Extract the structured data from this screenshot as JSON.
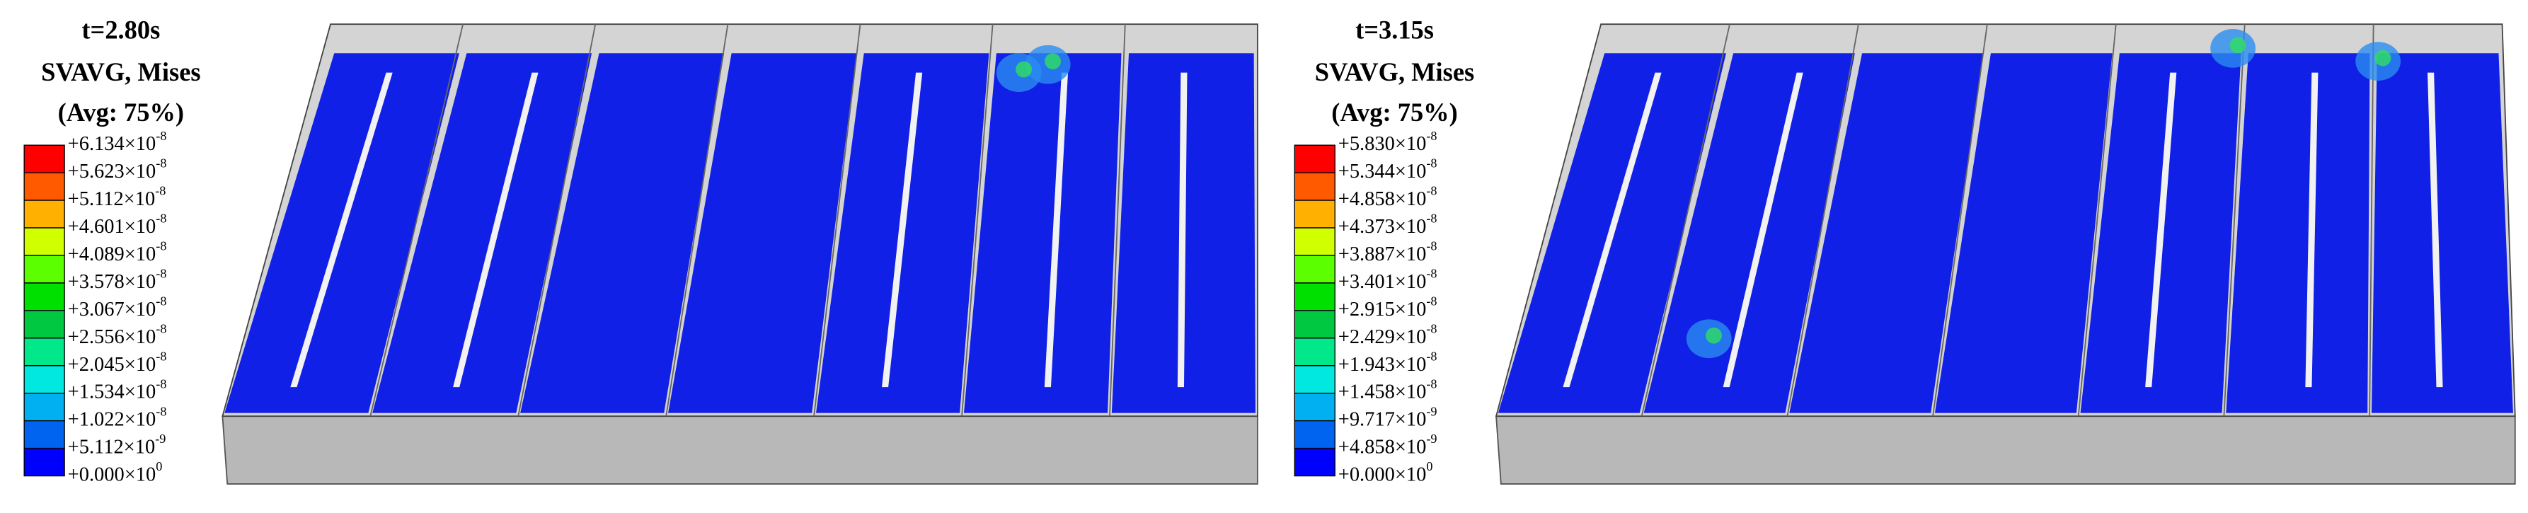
{
  "panels": [
    {
      "time": "t=2.80s",
      "variable": "SVAVG, Mises",
      "averaging": "(Avg: 75%)",
      "legend": [
        {
          "mantissa": "+6.134×10",
          "exponent": "-8"
        },
        {
          "mantissa": "+5.623×10",
          "exponent": "-8"
        },
        {
          "mantissa": "+5.112×10",
          "exponent": "-8"
        },
        {
          "mantissa": "+4.601×10",
          "exponent": "-8"
        },
        {
          "mantissa": "+4.089×10",
          "exponent": "-8"
        },
        {
          "mantissa": "+3.578×10",
          "exponent": "-8"
        },
        {
          "mantissa": "+3.067×10",
          "exponent": "-8"
        },
        {
          "mantissa": "+2.556×10",
          "exponent": "-8"
        },
        {
          "mantissa": "+2.045×10",
          "exponent": "-8"
        },
        {
          "mantissa": "+1.534×10",
          "exponent": "-8"
        },
        {
          "mantissa": "+1.022×10",
          "exponent": "-8"
        },
        {
          "mantissa": "+5.112×10",
          "exponent": "-9"
        },
        {
          "mantissa": "+0.000×10",
          "exponent": "0"
        }
      ]
    },
    {
      "time": "t=3.15s",
      "variable": "SVAVG, Mises",
      "averaging": "(Avg: 75%)",
      "legend": [
        {
          "mantissa": "+5.830×10",
          "exponent": "-8"
        },
        {
          "mantissa": "+5.344×10",
          "exponent": "-8"
        },
        {
          "mantissa": "+4.858×10",
          "exponent": "-8"
        },
        {
          "mantissa": "+4.373×10",
          "exponent": "-8"
        },
        {
          "mantissa": "+3.887×10",
          "exponent": "-8"
        },
        {
          "mantissa": "+3.401×10",
          "exponent": "-8"
        },
        {
          "mantissa": "+2.915×10",
          "exponent": "-8"
        },
        {
          "mantissa": "+2.429×10",
          "exponent": "-8"
        },
        {
          "mantissa": "+1.943×10",
          "exponent": "-8"
        },
        {
          "mantissa": "+1.458×10",
          "exponent": "-8"
        },
        {
          "mantissa": "+9.717×10",
          "exponent": "-9"
        },
        {
          "mantissa": "+4.858×10",
          "exponent": "-9"
        },
        {
          "mantissa": "+0.000×10",
          "exponent": "0"
        }
      ]
    }
  ]
}
